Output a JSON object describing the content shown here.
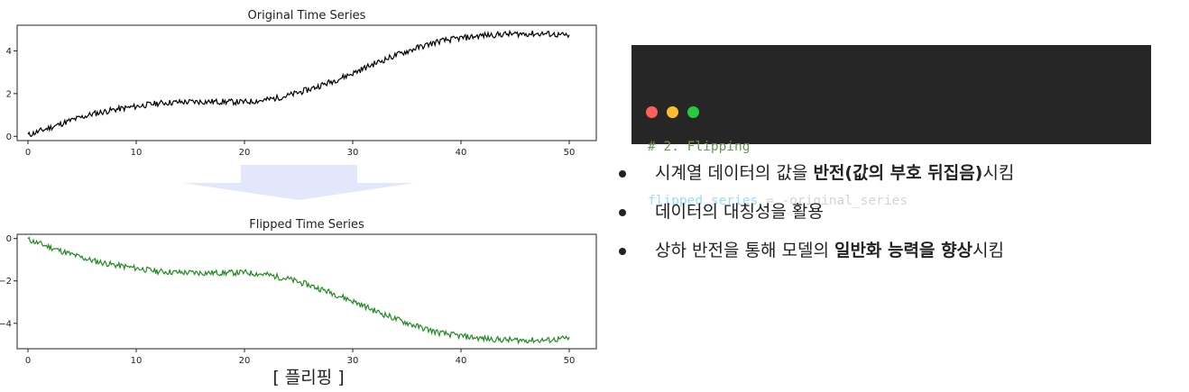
{
  "chart_data": [
    {
      "type": "line",
      "title": "Original Time Series",
      "xlim": [
        0,
        50
      ],
      "ylim": [
        -0.2,
        5.2
      ],
      "xticks": [
        0,
        10,
        20,
        30,
        40,
        50
      ],
      "yticks": [
        0,
        2,
        4
      ],
      "grid": false,
      "series": [
        {
          "color": "#000000",
          "x": [
            0,
            2,
            4,
            6,
            8,
            10,
            12,
            14,
            16,
            18,
            20,
            22,
            24,
            26,
            28,
            30,
            32,
            34,
            36,
            38,
            40,
            42,
            44,
            46,
            48,
            50
          ],
          "y": [
            0.05,
            0.4,
            0.75,
            1.05,
            1.25,
            1.4,
            1.55,
            1.6,
            1.62,
            1.62,
            1.6,
            1.7,
            1.9,
            2.2,
            2.55,
            2.95,
            3.4,
            3.8,
            4.15,
            4.45,
            4.6,
            4.72,
            4.78,
            4.8,
            4.8,
            4.7
          ]
        }
      ]
    },
    {
      "type": "line",
      "title": "Flipped Time Series",
      "xlim": [
        0,
        50
      ],
      "ylim": [
        -5.2,
        0.2
      ],
      "xticks": [
        0,
        10,
        20,
        30,
        40,
        50
      ],
      "yticks": [
        0,
        -2,
        -4
      ],
      "grid": false,
      "series": [
        {
          "color": "#228b22",
          "x": [
            0,
            2,
            4,
            6,
            8,
            10,
            12,
            14,
            16,
            18,
            20,
            22,
            24,
            26,
            28,
            30,
            32,
            34,
            36,
            38,
            40,
            42,
            44,
            46,
            48,
            50
          ],
          "y": [
            -0.05,
            -0.4,
            -0.75,
            -1.05,
            -1.25,
            -1.4,
            -1.55,
            -1.6,
            -1.62,
            -1.62,
            -1.6,
            -1.7,
            -1.9,
            -2.2,
            -2.55,
            -2.95,
            -3.4,
            -3.8,
            -4.15,
            -4.45,
            -4.6,
            -4.72,
            -4.78,
            -4.8,
            -4.8,
            -4.7
          ]
        }
      ]
    }
  ],
  "caption": "[ 플리핑 ]",
  "code": {
    "dot_colors": [
      "#ff5f56",
      "#ffbd2e",
      "#27c93f"
    ],
    "comment": "# 2. Flipping",
    "var": "flipped_series",
    "op": " = ",
    "value": "-original_series",
    "comment_color": "#6a9955",
    "var_color": "#9cdcfe",
    "text_color": "#d4d4d4"
  },
  "bullets": [
    {
      "pre": "시계열 데이터의 값을 ",
      "bold": "반전(값의 부호 뒤집음)",
      "post": "시킴"
    },
    {
      "pre": "데이터의 대칭성을 활용",
      "bold": "",
      "post": ""
    },
    {
      "pre": "상하 반전을 통해 모델의 ",
      "bold": "일반화 능력을 향상",
      "post": "시킴"
    }
  ],
  "arrow_color": "#e3e7fb"
}
